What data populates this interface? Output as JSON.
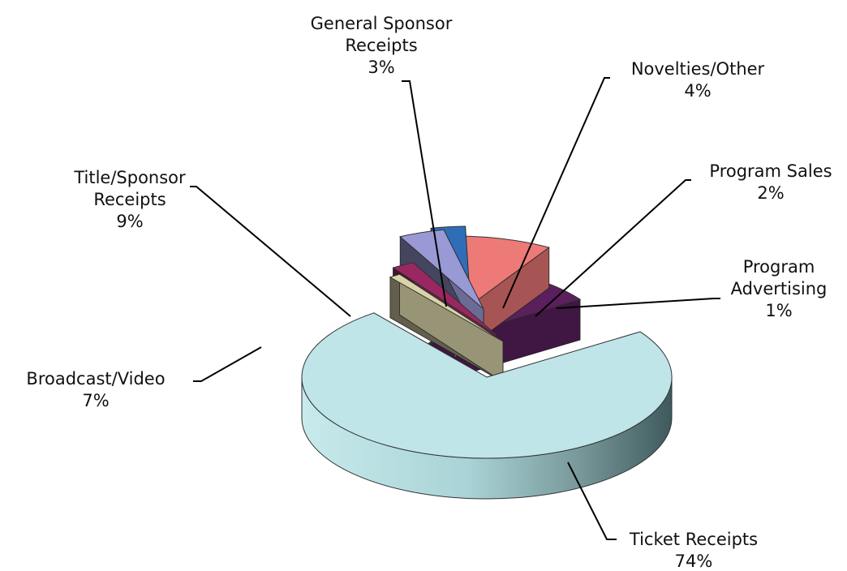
{
  "chart_data": {
    "type": "pie",
    "title": "",
    "slices": [
      {
        "label_lines": [
          "Ticket Receipts"
        ],
        "pct_text": "74%",
        "value": 74,
        "color": "#bfe5e8"
      },
      {
        "label_lines": [
          "Program",
          "Advertising"
        ],
        "pct_text": "1%",
        "value": 1,
        "color": "#d9d3a8"
      },
      {
        "label_lines": [
          "Program Sales"
        ],
        "pct_text": "2%",
        "value": 2,
        "color": "#9b2762"
      },
      {
        "label_lines": [
          "Novelties/Other"
        ],
        "pct_text": "4%",
        "value": 4,
        "color": "#9999d6"
      },
      {
        "label_lines": [
          "General Sponsor",
          "Receipts"
        ],
        "pct_text": "3%",
        "value": 3,
        "color": "#2f6db8"
      },
      {
        "label_lines": [
          "Title/Sponsor",
          "Receipts"
        ],
        "pct_text": "9%",
        "value": 9,
        "color": "#ee7a78"
      },
      {
        "label_lines": [
          "Broadcast/Video"
        ],
        "pct_text": "7%",
        "value": 7,
        "color": "#5c1f5e"
      }
    ],
    "style": "3d-exploded",
    "legend": "none"
  }
}
